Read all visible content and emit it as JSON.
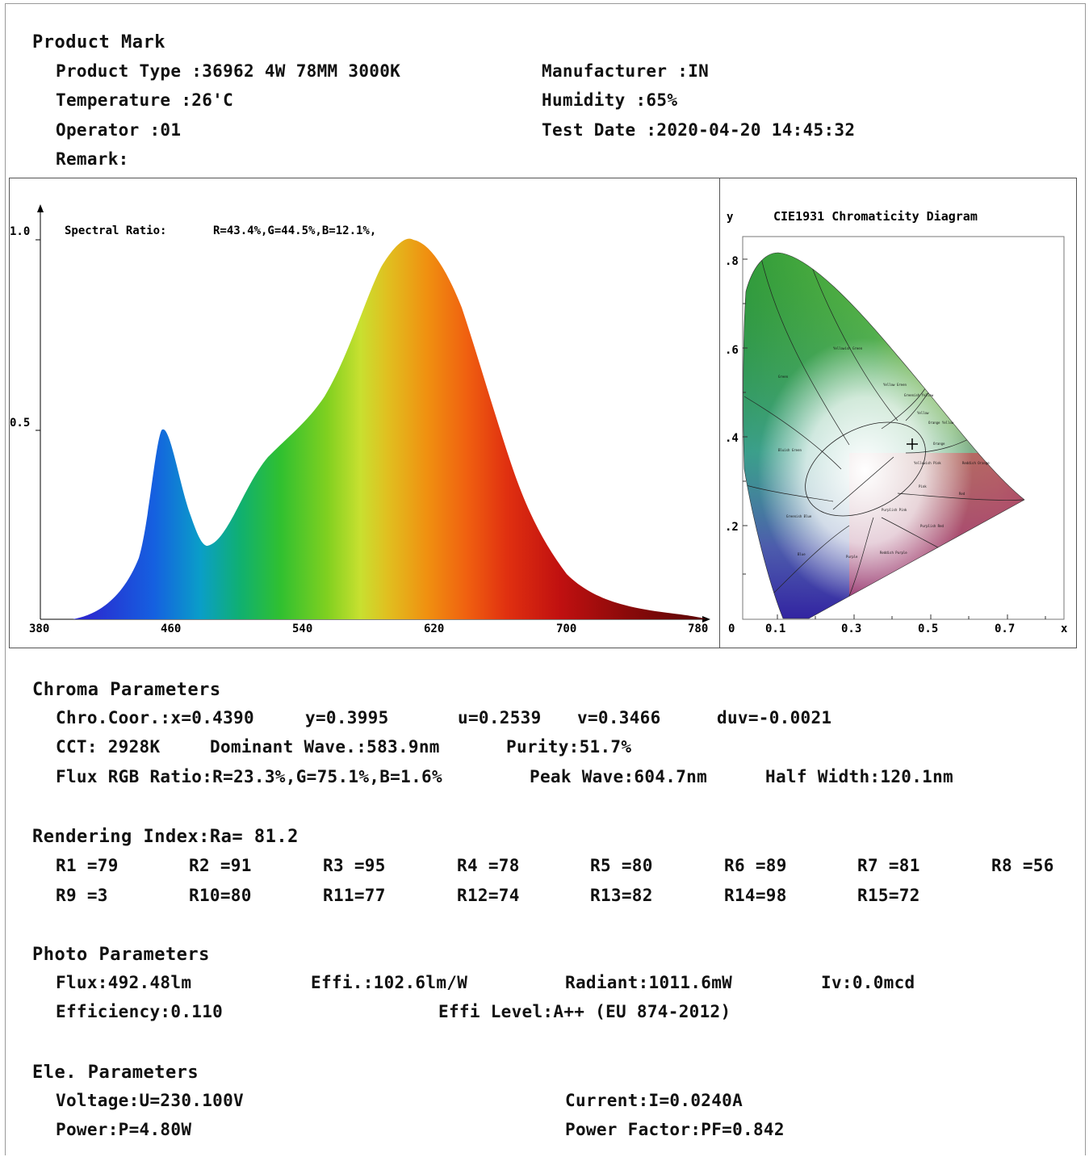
{
  "product": {
    "heading": "Product Mark",
    "type": "Product Type :36962 4W 78MM 3000K",
    "manufacturer": "Manufacturer :IN",
    "temperature": "Temperature :26'C",
    "humidity": "Humidity :65%",
    "operator": "Operator :01",
    "test_date": "Test Date :2020-04-20 14:45:32",
    "remark": "Remark:"
  },
  "spectrum": {
    "ratio_label": "Spectral Ratio:",
    "ratio_value": "R=43.4%,G=44.5%,B=12.1%,",
    "y_ticks": [
      "1.0",
      "0.5"
    ],
    "x_ticks": [
      "380",
      "460",
      "540",
      "620",
      "700",
      "780"
    ]
  },
  "cie": {
    "title": "CIE1931 Chromaticity Diagram",
    "y_axis": "y",
    "x_axis": "x",
    "origin": "0",
    "y_ticks": [
      ".8",
      ".6",
      ".4",
      ".2"
    ],
    "x_ticks": [
      "0.1",
      "0.3",
      "0.5",
      "0.7"
    ],
    "regions": [
      "Green",
      "Yellowish Green",
      "Yellow Green",
      "Greenish Yellow",
      "Yellow",
      "Orange Yellow",
      "Orange",
      "Reddish Orange",
      "Red",
      "Pink",
      "Yellowish Pink",
      "Bluish Green",
      "Greenish Blue",
      "Blue",
      "Purple",
      "Purplish Pink",
      "Purplish Red",
      "Reddish Purple"
    ]
  },
  "chroma": {
    "heading": "Chroma Parameters",
    "coor": "Chro.Coor.:x=0.4390",
    "y": "y=0.3995",
    "u": "u=0.2539",
    "v": "v=0.3466",
    "duv": "duv=-0.0021",
    "cct": "CCT: 2928K",
    "dominant": "Dominant Wave.:583.9nm",
    "purity": "Purity:51.7%",
    "flux_rgb": "Flux RGB Ratio:R=23.3%,G=75.1%,B=1.6%",
    "peak": "Peak Wave:604.7nm",
    "half_width": "Half Width:120.1nm"
  },
  "rendering": {
    "heading": "Rendering Index:Ra= 81.2",
    "row1": [
      "R1 =79",
      "R2 =91",
      "R3 =95",
      "R4 =78",
      "R5 =80",
      "R6 =89",
      "R7 =81",
      "R8 =56"
    ],
    "row2": [
      "R9 =3",
      "R10=80",
      "R11=77",
      "R12=74",
      "R13=82",
      "R14=98",
      "R15=72"
    ]
  },
  "photo": {
    "heading": "Photo Parameters",
    "flux": "Flux:492.48lm",
    "effi": "Effi.:102.6lm/W",
    "radiant": "Radiant:1011.6mW",
    "iv": "Iv:0.0mcd",
    "efficiency": "Efficiency:0.110",
    "effi_level": "Effi Level:A++ (EU 874-2012)"
  },
  "electrical": {
    "heading": "Ele. Parameters",
    "voltage": "Voltage:U=230.100V",
    "current": "Current:I=0.0240A",
    "power": "Power:P=4.80W",
    "pf": "Power Factor:PF=0.842"
  }
}
